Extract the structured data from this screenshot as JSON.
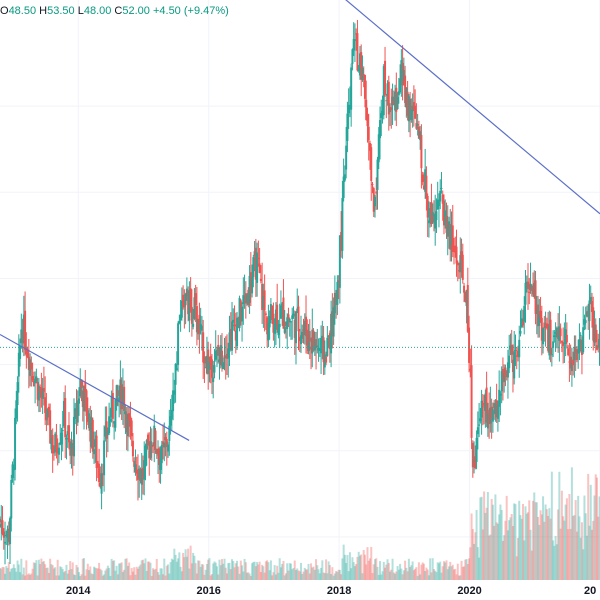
{
  "header": {
    "o_label": "O",
    "o_value": "48.50",
    "h_label": "H",
    "h_value": "53.50",
    "l_label": "L",
    "l_value": "48.00",
    "c_label": "C",
    "c_value": "52.00",
    "change": "+4.50 (+9.47%)"
  },
  "colors": {
    "up": "#26a69a",
    "down": "#ef5350",
    "trendline": "#5b6fc9",
    "price_line": "#26a69a",
    "grid": "#f0f3fa",
    "axis_text": "#131722"
  },
  "chart_data": {
    "type": "candlestick",
    "x_tick_labels": [
      "2014",
      "2016",
      "2018",
      "2020",
      "20"
    ],
    "last_price": 52.0,
    "y_range": [
      25,
      90
    ],
    "anchors": [
      [
        2012.8,
        32
      ],
      [
        2012.95,
        30
      ],
      [
        2013.05,
        42
      ],
      [
        2013.15,
        55
      ],
      [
        2013.3,
        50
      ],
      [
        2013.5,
        45
      ],
      [
        2013.65,
        40
      ],
      [
        2013.8,
        44
      ],
      [
        2013.9,
        39
      ],
      [
        2014.05,
        48
      ],
      [
        2014.2,
        43
      ],
      [
        2014.35,
        37
      ],
      [
        2014.5,
        44
      ],
      [
        2014.7,
        47
      ],
      [
        2014.85,
        40
      ],
      [
        2015.0,
        37
      ],
      [
        2015.15,
        42
      ],
      [
        2015.3,
        39
      ],
      [
        2015.45,
        43
      ],
      [
        2015.6,
        58
      ],
      [
        2015.8,
        56
      ],
      [
        2016.0,
        50
      ],
      [
        2016.2,
        51
      ],
      [
        2016.45,
        55
      ],
      [
        2016.6,
        58
      ],
      [
        2016.75,
        62
      ],
      [
        2016.9,
        55
      ],
      [
        2017.1,
        56
      ],
      [
        2017.35,
        55
      ],
      [
        2017.6,
        53
      ],
      [
        2017.8,
        51
      ],
      [
        2017.95,
        56
      ],
      [
        2018.05,
        65
      ],
      [
        2018.15,
        78
      ],
      [
        2018.25,
        88
      ],
      [
        2018.4,
        82
      ],
      [
        2018.55,
        68
      ],
      [
        2018.7,
        83
      ],
      [
        2018.85,
        79
      ],
      [
        2018.95,
        84
      ],
      [
        2019.1,
        80
      ],
      [
        2019.25,
        76
      ],
      [
        2019.4,
        67
      ],
      [
        2019.55,
        70
      ],
      [
        2019.75,
        64
      ],
      [
        2019.95,
        59
      ],
      [
        2020.0,
        54
      ],
      [
        2020.08,
        37
      ],
      [
        2020.2,
        47
      ],
      [
        2020.35,
        43
      ],
      [
        2020.55,
        49
      ],
      [
        2020.75,
        52
      ],
      [
        2020.88,
        58
      ],
      [
        2020.95,
        60
      ],
      [
        2021.1,
        55
      ],
      [
        2021.3,
        52
      ],
      [
        2021.45,
        54
      ],
      [
        2021.6,
        50
      ],
      [
        2021.75,
        53
      ],
      [
        2021.85,
        58
      ],
      [
        2021.95,
        52
      ]
    ],
    "trendlines": [
      {
        "from": [
          2012.8,
          53.5
        ],
        "to": [
          2015.7,
          41.2
        ]
      },
      {
        "from": [
          2018.0,
          93.0
        ],
        "to": [
          2022.0,
          67.5
        ]
      }
    ]
  }
}
